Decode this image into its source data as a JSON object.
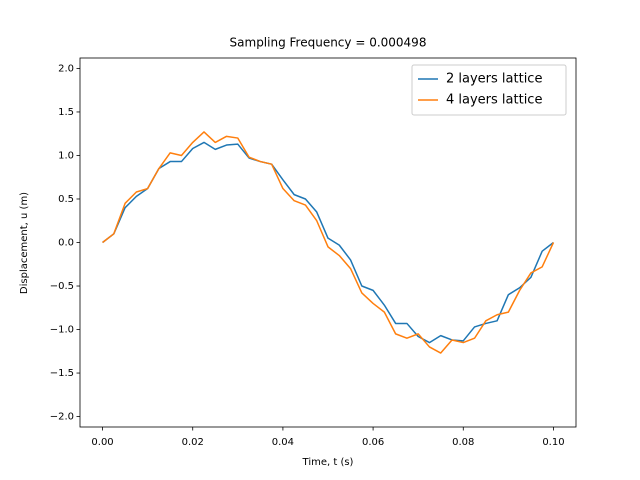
{
  "chart_data": {
    "type": "line",
    "title": "Sampling Frequency = 0.000498",
    "x_label": "Time, t (s)",
    "y_label": "Displacement, u (m)",
    "x": [
      0,
      0.0025,
      0.005,
      0.0075,
      0.01,
      0.0125,
      0.015,
      0.0175,
      0.02,
      0.0225,
      0.025,
      0.0275,
      0.03,
      0.0325,
      0.035,
      0.0375,
      0.04,
      0.0425,
      0.045,
      0.0475,
      0.05,
      0.0525,
      0.055,
      0.0575,
      0.06,
      0.0625,
      0.065,
      0.0675,
      0.07,
      0.0725,
      0.075,
      0.0775,
      0.08,
      0.0825,
      0.085,
      0.0875,
      0.09,
      0.0925,
      0.095,
      0.0975,
      0.1
    ],
    "series": [
      {
        "name": "2 layers lattice",
        "color": "#1f77b4",
        "values": [
          0,
          0.1,
          0.4,
          0.53,
          0.62,
          0.85,
          0.93,
          0.93,
          1.08,
          1.15,
          1.07,
          1.12,
          1.13,
          0.97,
          0.93,
          0.9,
          0.72,
          0.55,
          0.5,
          0.35,
          0.05,
          -0.03,
          -0.2,
          -0.5,
          -0.55,
          -0.72,
          -0.93,
          -0.93,
          -1.08,
          -1.15,
          -1.07,
          -1.12,
          -1.13,
          -0.97,
          -0.93,
          -0.9,
          -0.6,
          -0.52,
          -0.4,
          -0.1,
          0
        ]
      },
      {
        "name": "4 layers lattice",
        "color": "#ff7f0e",
        "values": [
          0,
          0.1,
          0.45,
          0.58,
          0.62,
          0.85,
          1.03,
          1.0,
          1.15,
          1.27,
          1.15,
          1.22,
          1.2,
          0.98,
          0.93,
          0.9,
          0.62,
          0.48,
          0.43,
          0.25,
          -0.05,
          -0.15,
          -0.3,
          -0.58,
          -0.7,
          -0.8,
          -1.05,
          -1.1,
          -1.05,
          -1.2,
          -1.27,
          -1.12,
          -1.15,
          -1.1,
          -0.9,
          -0.83,
          -0.8,
          -0.55,
          -0.35,
          -0.28,
          0
        ]
      }
    ],
    "xlim": [
      -0.005,
      0.105
    ],
    "ylim": [
      -2.12,
      2.12
    ],
    "xticks": [
      {
        "value": 0,
        "label": "0.00"
      },
      {
        "value": 0.02,
        "label": "0.02"
      },
      {
        "value": 0.04,
        "label": "0.04"
      },
      {
        "value": 0.06,
        "label": "0.06"
      },
      {
        "value": 0.08,
        "label": "0.08"
      },
      {
        "value": 0.1,
        "label": "0.10"
      }
    ],
    "yticks": [
      {
        "value": -2,
        "label": "−2.0"
      },
      {
        "value": -1.5,
        "label": "−1.5"
      },
      {
        "value": -1,
        "label": "−1.0"
      },
      {
        "value": -0.5,
        "label": "−0.5"
      },
      {
        "value": 0,
        "label": "0.0"
      },
      {
        "value": 0.5,
        "label": "0.5"
      },
      {
        "value": 1,
        "label": "1.0"
      },
      {
        "value": 1.5,
        "label": "1.5"
      },
      {
        "value": 2,
        "label": "2.0"
      }
    ],
    "legend": "upper right",
    "grid": false
  }
}
